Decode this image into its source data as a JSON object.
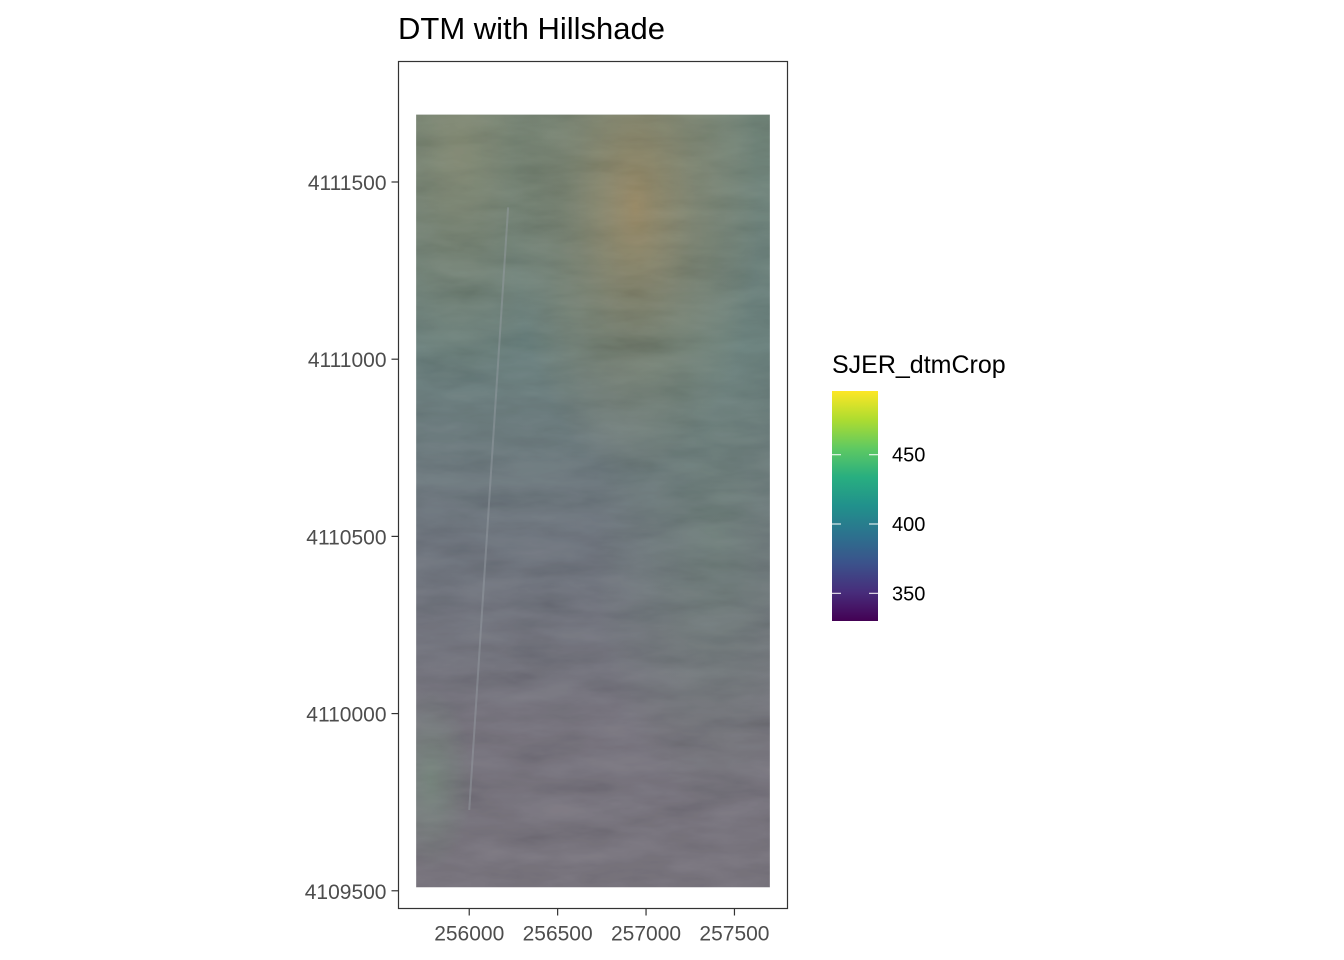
{
  "chart_data": {
    "type": "heatmap",
    "title": "DTM with Hillshade",
    "subtitle": "",
    "xlabel": "",
    "ylabel": "",
    "xlim": [
      255600,
      257800
    ],
    "ylim": [
      4109450,
      4111840
    ],
    "data_extent": {
      "x": [
        255700,
        257700
      ],
      "y": [
        4109510,
        4111690
      ]
    },
    "x_ticks": [
      256000,
      256500,
      257000,
      257500
    ],
    "y_ticks": [
      4109500,
      4110000,
      4110500,
      4111000,
      4111500
    ],
    "x_tick_labels": [
      "256000",
      "256500",
      "257000",
      "257500"
    ],
    "y_tick_labels": [
      "4109500",
      "4110000",
      "4110500",
      "4111000",
      "4111500"
    ],
    "grid": false,
    "legend": {
      "title": "SJER_dtmCrop",
      "placement": "right",
      "range": [
        330,
        496
      ],
      "ticks": [
        350,
        400,
        450
      ],
      "tick_labels": [
        "350",
        "400",
        "450"
      ],
      "colormap": "viridis",
      "colors": [
        "#440154",
        "#472d7b",
        "#3b528b",
        "#2c728e",
        "#21918c",
        "#28ae80",
        "#5ec962",
        "#addc30",
        "#fde725"
      ]
    },
    "colors": {
      "panel_border": "#333333",
      "tick": "#333333",
      "raster_low": "#66626e",
      "raster_mid": "#57696f",
      "raster_high": "#8a7d52"
    }
  }
}
